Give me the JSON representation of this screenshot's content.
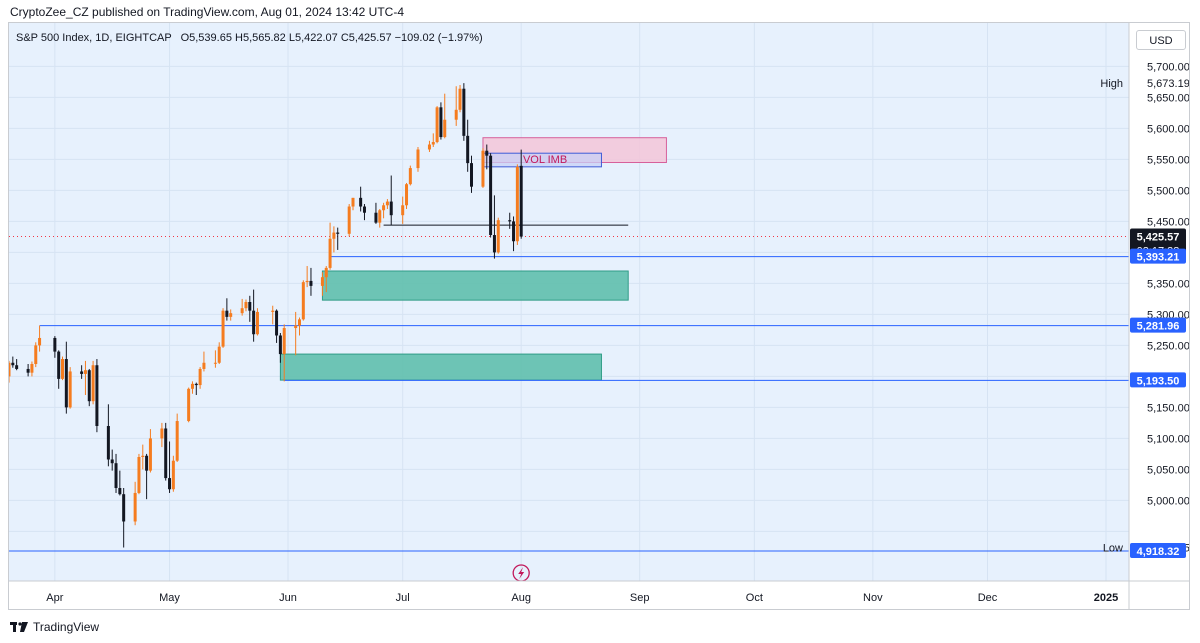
{
  "header": {
    "published": "CryptoZee_CZ published on TradingView.com, Aug 01, 2024 13:42 UTC-4"
  },
  "legend": {
    "symbol": "S&P 500 Index, 1D, EIGHTCAP",
    "ohlc": "O5,539.65  H5,565.82  L5,422.07  C5,425.57  −109.02 (−1.97%)"
  },
  "currency": "USD",
  "footer": {
    "brand": "TradingView"
  },
  "colors": {
    "background": "#e7f1fd",
    "bull": "#f57c1f",
    "bear": "#131722",
    "demand_zone": "#5fbfad",
    "supply_zone": "#f3c6d8",
    "vol_imb_box": "#c8d0f5",
    "level_line": "#2962ff"
  },
  "chart_data": {
    "type": "candlestick",
    "y_range": [
      4870,
      5770
    ],
    "y_ticks": [
      4950,
      5000,
      5050,
      5100,
      5150,
      5200,
      5250,
      5300,
      5350,
      5400,
      5450,
      5500,
      5550,
      5600,
      5650,
      5700
    ],
    "y_tick_labels": [
      "4,950.00",
      "5,000.00",
      "5,050.00",
      "5,100.00",
      "5,150.00",
      "5,200.00",
      "5,250.00",
      "5,300.00",
      "5,350.00",
      "5,400.00",
      "5,450.00",
      "5,500.00",
      "5,550.00",
      "5,600.00",
      "5,650.00",
      "5,700.00"
    ],
    "x_axis_labels": [
      "Apr",
      "May",
      "Jun",
      "Jul",
      "Aug",
      "Sep",
      "Oct",
      "Nov",
      "Dec",
      "2025"
    ],
    "x_axis_label_dates": [
      "2024-04-01",
      "2024-05-01",
      "2024-06-01",
      "2024-07-01",
      "2024-08-01",
      "2024-09-01",
      "2024-10-01",
      "2024-11-01",
      "2024-12-01",
      "2025-01-01"
    ],
    "candles": [
      {
        "date": "2024-03-20",
        "open": 5200,
        "high": 5225,
        "low": 5190,
        "close": 5222
      },
      {
        "date": "2024-03-21",
        "open": 5222,
        "high": 5232,
        "low": 5214,
        "close": 5218
      },
      {
        "date": "2024-03-22",
        "open": 5218,
        "high": 5228,
        "low": 5210,
        "close": 5212
      },
      {
        "date": "2024-03-25",
        "open": 5212,
        "high": 5220,
        "low": 5200,
        "close": 5206
      },
      {
        "date": "2024-03-26",
        "open": 5206,
        "high": 5224,
        "low": 5200,
        "close": 5220
      },
      {
        "date": "2024-03-27",
        "open": 5220,
        "high": 5255,
        "low": 5215,
        "close": 5250
      },
      {
        "date": "2024-03-28",
        "open": 5250,
        "high": 5282,
        "low": 5240,
        "close": 5262
      },
      {
        "date": "2024-04-01",
        "open": 5262,
        "high": 5265,
        "low": 5230,
        "close": 5240
      },
      {
        "date": "2024-04-02",
        "open": 5240,
        "high": 5242,
        "low": 5180,
        "close": 5196
      },
      {
        "date": "2024-04-03",
        "open": 5196,
        "high": 5232,
        "low": 5194,
        "close": 5228
      },
      {
        "date": "2024-04-04",
        "open": 5228,
        "high": 5256,
        "low": 5140,
        "close": 5150
      },
      {
        "date": "2024-04-05",
        "open": 5150,
        "high": 5215,
        "low": 5148,
        "close": 5208
      },
      {
        "date": "2024-04-08",
        "open": 5208,
        "high": 5218,
        "low": 5196,
        "close": 5204
      },
      {
        "date": "2024-04-09",
        "open": 5204,
        "high": 5225,
        "low": 5170,
        "close": 5210
      },
      {
        "date": "2024-04-10",
        "open": 5210,
        "high": 5212,
        "low": 5152,
        "close": 5160
      },
      {
        "date": "2024-04-11",
        "open": 5160,
        "high": 5225,
        "low": 5155,
        "close": 5218
      },
      {
        "date": "2024-04-12",
        "open": 5218,
        "high": 5228,
        "low": 5110,
        "close": 5120
      },
      {
        "date": "2024-04-15",
        "open": 5120,
        "high": 5155,
        "low": 5055,
        "close": 5066
      },
      {
        "date": "2024-04-16",
        "open": 5066,
        "high": 5082,
        "low": 5048,
        "close": 5060
      },
      {
        "date": "2024-04-17",
        "open": 5060,
        "high": 5075,
        "low": 5012,
        "close": 5020
      },
      {
        "date": "2024-04-18",
        "open": 5020,
        "high": 5048,
        "low": 5008,
        "close": 5010
      },
      {
        "date": "2024-04-19",
        "open": 5010,
        "high": 5020,
        "low": 4924,
        "close": 4966
      },
      {
        "date": "2024-04-22",
        "open": 4966,
        "high": 5030,
        "low": 4960,
        "close": 5012
      },
      {
        "date": "2024-04-23",
        "open": 5012,
        "high": 5075,
        "low": 5010,
        "close": 5070
      },
      {
        "date": "2024-04-24",
        "open": 5070,
        "high": 5090,
        "low": 5050,
        "close": 5072
      },
      {
        "date": "2024-04-25",
        "open": 5072,
        "high": 5075,
        "low": 5002,
        "close": 5048
      },
      {
        "date": "2024-04-26",
        "open": 5048,
        "high": 5115,
        "low": 5045,
        "close": 5100
      },
      {
        "date": "2024-04-29",
        "open": 5100,
        "high": 5125,
        "low": 5086,
        "close": 5116
      },
      {
        "date": "2024-04-30",
        "open": 5116,
        "high": 5125,
        "low": 5032,
        "close": 5036
      },
      {
        "date": "2024-05-01",
        "open": 5036,
        "high": 5095,
        "low": 5012,
        "close": 5018
      },
      {
        "date": "2024-05-02",
        "open": 5018,
        "high": 5072,
        "low": 5014,
        "close": 5064
      },
      {
        "date": "2024-05-03",
        "open": 5064,
        "high": 5140,
        "low": 5062,
        "close": 5128
      },
      {
        "date": "2024-05-06",
        "open": 5128,
        "high": 5182,
        "low": 5126,
        "close": 5180
      },
      {
        "date": "2024-05-07",
        "open": 5180,
        "high": 5192,
        "low": 5172,
        "close": 5188
      },
      {
        "date": "2024-05-08",
        "open": 5188,
        "high": 5190,
        "low": 5170,
        "close": 5186
      },
      {
        "date": "2024-05-09",
        "open": 5186,
        "high": 5215,
        "low": 5180,
        "close": 5212
      },
      {
        "date": "2024-05-10",
        "open": 5212,
        "high": 5240,
        "low": 5208,
        "close": 5222
      },
      {
        "date": "2024-05-13",
        "open": 5222,
        "high": 5242,
        "low": 5214,
        "close": 5222
      },
      {
        "date": "2024-05-14",
        "open": 5222,
        "high": 5255,
        "low": 5220,
        "close": 5248
      },
      {
        "date": "2024-05-15",
        "open": 5248,
        "high": 5310,
        "low": 5246,
        "close": 5306
      },
      {
        "date": "2024-05-16",
        "open": 5306,
        "high": 5326,
        "low": 5290,
        "close": 5296
      },
      {
        "date": "2024-05-17",
        "open": 5296,
        "high": 5308,
        "low": 5290,
        "close": 5302
      },
      {
        "date": "2024-05-20",
        "open": 5302,
        "high": 5325,
        "low": 5298,
        "close": 5310
      },
      {
        "date": "2024-05-21",
        "open": 5310,
        "high": 5324,
        "low": 5305,
        "close": 5320
      },
      {
        "date": "2024-05-22",
        "open": 5320,
        "high": 5330,
        "low": 5288,
        "close": 5306
      },
      {
        "date": "2024-05-23",
        "open": 5306,
        "high": 5340,
        "low": 5256,
        "close": 5268
      },
      {
        "date": "2024-05-24",
        "open": 5268,
        "high": 5310,
        "low": 5266,
        "close": 5304
      },
      {
        "date": "2024-05-28",
        "open": 5304,
        "high": 5314,
        "low": 5284,
        "close": 5306
      },
      {
        "date": "2024-05-29",
        "open": 5306,
        "high": 5308,
        "low": 5254,
        "close": 5266
      },
      {
        "date": "2024-05-30",
        "open": 5266,
        "high": 5270,
        "low": 5222,
        "close": 5236
      },
      {
        "date": "2024-05-31",
        "open": 5236,
        "high": 5284,
        "low": 5192,
        "close": 5278
      },
      {
        "date": "2024-06-03",
        "open": 5278,
        "high": 5304,
        "low": 5234,
        "close": 5282
      },
      {
        "date": "2024-06-04",
        "open": 5282,
        "high": 5295,
        "low": 5266,
        "close": 5292
      },
      {
        "date": "2024-06-05",
        "open": 5292,
        "high": 5355,
        "low": 5290,
        "close": 5352
      },
      {
        "date": "2024-06-06",
        "open": 5352,
        "high": 5378,
        "low": 5344,
        "close": 5354
      },
      {
        "date": "2024-06-07",
        "open": 5354,
        "high": 5375,
        "low": 5330,
        "close": 5346
      },
      {
        "date": "2024-06-10",
        "open": 5346,
        "high": 5368,
        "low": 5330,
        "close": 5360
      },
      {
        "date": "2024-06-11",
        "open": 5360,
        "high": 5378,
        "low": 5336,
        "close": 5375
      },
      {
        "date": "2024-06-12",
        "open": 5375,
        "high": 5448,
        "low": 5372,
        "close": 5422
      },
      {
        "date": "2024-06-13",
        "open": 5422,
        "high": 5442,
        "low": 5400,
        "close": 5432
      },
      {
        "date": "2024-06-14",
        "open": 5432,
        "high": 5440,
        "low": 5404,
        "close": 5430
      },
      {
        "date": "2024-06-17",
        "open": 5430,
        "high": 5478,
        "low": 5426,
        "close": 5474
      },
      {
        "date": "2024-06-18",
        "open": 5474,
        "high": 5488,
        "low": 5468,
        "close": 5488
      },
      {
        "date": "2024-06-20",
        "open": 5488,
        "high": 5506,
        "low": 5466,
        "close": 5474
      },
      {
        "date": "2024-06-21",
        "open": 5474,
        "high": 5478,
        "low": 5452,
        "close": 5464
      },
      {
        "date": "2024-06-24",
        "open": 5464,
        "high": 5480,
        "low": 5446,
        "close": 5448
      },
      {
        "date": "2024-06-25",
        "open": 5448,
        "high": 5470,
        "low": 5440,
        "close": 5468
      },
      {
        "date": "2024-06-26",
        "open": 5468,
        "high": 5480,
        "low": 5455,
        "close": 5476
      },
      {
        "date": "2024-06-27",
        "open": 5476,
        "high": 5486,
        "low": 5470,
        "close": 5482
      },
      {
        "date": "2024-06-28",
        "open": 5482,
        "high": 5524,
        "low": 5444,
        "close": 5460
      },
      {
        "date": "2024-07-01",
        "open": 5460,
        "high": 5490,
        "low": 5446,
        "close": 5476
      },
      {
        "date": "2024-07-02",
        "open": 5476,
        "high": 5512,
        "low": 5470,
        "close": 5510
      },
      {
        "date": "2024-07-03",
        "open": 5510,
        "high": 5540,
        "low": 5508,
        "close": 5536
      },
      {
        "date": "2024-07-05",
        "open": 5536,
        "high": 5570,
        "low": 5530,
        "close": 5566
      },
      {
        "date": "2024-07-08",
        "open": 5566,
        "high": 5580,
        "low": 5562,
        "close": 5574
      },
      {
        "date": "2024-07-09",
        "open": 5574,
        "high": 5592,
        "low": 5570,
        "close": 5578
      },
      {
        "date": "2024-07-10",
        "open": 5578,
        "high": 5636,
        "low": 5576,
        "close": 5634
      },
      {
        "date": "2024-07-11",
        "open": 5634,
        "high": 5642,
        "low": 5582,
        "close": 5586
      },
      {
        "date": "2024-07-12",
        "open": 5586,
        "high": 5656,
        "low": 5584,
        "close": 5614
      },
      {
        "date": "2024-07-15",
        "open": 5614,
        "high": 5668,
        "low": 5604,
        "close": 5630
      },
      {
        "date": "2024-07-16",
        "open": 5630,
        "high": 5670,
        "low": 5626,
        "close": 5664
      },
      {
        "date": "2024-07-17",
        "open": 5664,
        "high": 5673,
        "low": 5580,
        "close": 5588
      },
      {
        "date": "2024-07-18",
        "open": 5588,
        "high": 5614,
        "low": 5530,
        "close": 5544
      },
      {
        "date": "2024-07-19",
        "open": 5544,
        "high": 5556,
        "low": 5496,
        "close": 5506
      },
      {
        "date": "2024-07-22",
        "open": 5506,
        "high": 5568,
        "low": 5504,
        "close": 5564
      },
      {
        "date": "2024-07-23",
        "open": 5564,
        "high": 5574,
        "low": 5534,
        "close": 5556
      },
      {
        "date": "2024-07-24",
        "open": 5556,
        "high": 5560,
        "low": 5424,
        "close": 5428
      },
      {
        "date": "2024-07-25",
        "open": 5428,
        "high": 5492,
        "low": 5390,
        "close": 5400
      },
      {
        "date": "2024-07-26",
        "open": 5400,
        "high": 5456,
        "low": 5398,
        "close": 5452
      },
      {
        "date": "2024-07-29",
        "open": 5452,
        "high": 5464,
        "low": 5438,
        "close": 5450
      },
      {
        "date": "2024-07-30",
        "open": 5450,
        "high": 5458,
        "low": 5402,
        "close": 5418
      },
      {
        "date": "2024-07-31",
        "open": 5418,
        "high": 5542,
        "low": 5412,
        "close": 5538
      },
      {
        "date": "2024-08-01",
        "open": 5539.65,
        "high": 5565.82,
        "low": 5422.07,
        "close": 5425.57
      }
    ],
    "price_labels": [
      {
        "label": "5,673.19",
        "value": 5673.19,
        "text": "High"
      },
      {
        "label": "5,425.57",
        "value": 5425.57,
        "sub": "03:17:38"
      },
      {
        "label": "5,393.21",
        "value": 5393.21
      },
      {
        "label": "5,281.96",
        "value": 5281.96
      },
      {
        "label": "5,193.50",
        "value": 5193.5
      },
      {
        "label": "4,924.25",
        "value": 4924.25,
        "text": "Low"
      },
      {
        "label": "4,918.32",
        "value": 4918.32
      }
    ],
    "zones": [
      {
        "kind": "supply",
        "from": "2024-07-22",
        "to": "2024-09-08",
        "top": 5585,
        "bottom": 5545
      },
      {
        "kind": "vol_imbalance",
        "label": "VOL IMB",
        "from": "2024-07-22",
        "to": "2024-08-22",
        "top": 5560,
        "bottom": 5538
      },
      {
        "kind": "demand",
        "from": "2024-06-10",
        "to": "2024-08-29",
        "top": 5370,
        "bottom": 5323
      },
      {
        "kind": "demand",
        "from": "2024-05-30",
        "to": "2024-08-22",
        "top": 5236,
        "bottom": 5194
      }
    ],
    "levels": [
      {
        "value": 5393.21,
        "from": "2024-06-12",
        "to": "end",
        "color": "#2962ff"
      },
      {
        "value": 5281.96,
        "from": "2024-03-28",
        "to": "end",
        "color": "#2962ff"
      },
      {
        "value": 5193.5,
        "from": "2024-05-31",
        "to": "end",
        "color": "#2962ff"
      },
      {
        "value": 4918.32,
        "from": "start",
        "to": "end",
        "color": "#2962ff"
      },
      {
        "value": 5444,
        "from": "2024-06-26",
        "to": "2024-08-29",
        "color": "#131722"
      },
      {
        "value": 5425.57,
        "from": "start",
        "to": "end",
        "color": "#f23645",
        "dotted": true
      }
    ]
  }
}
